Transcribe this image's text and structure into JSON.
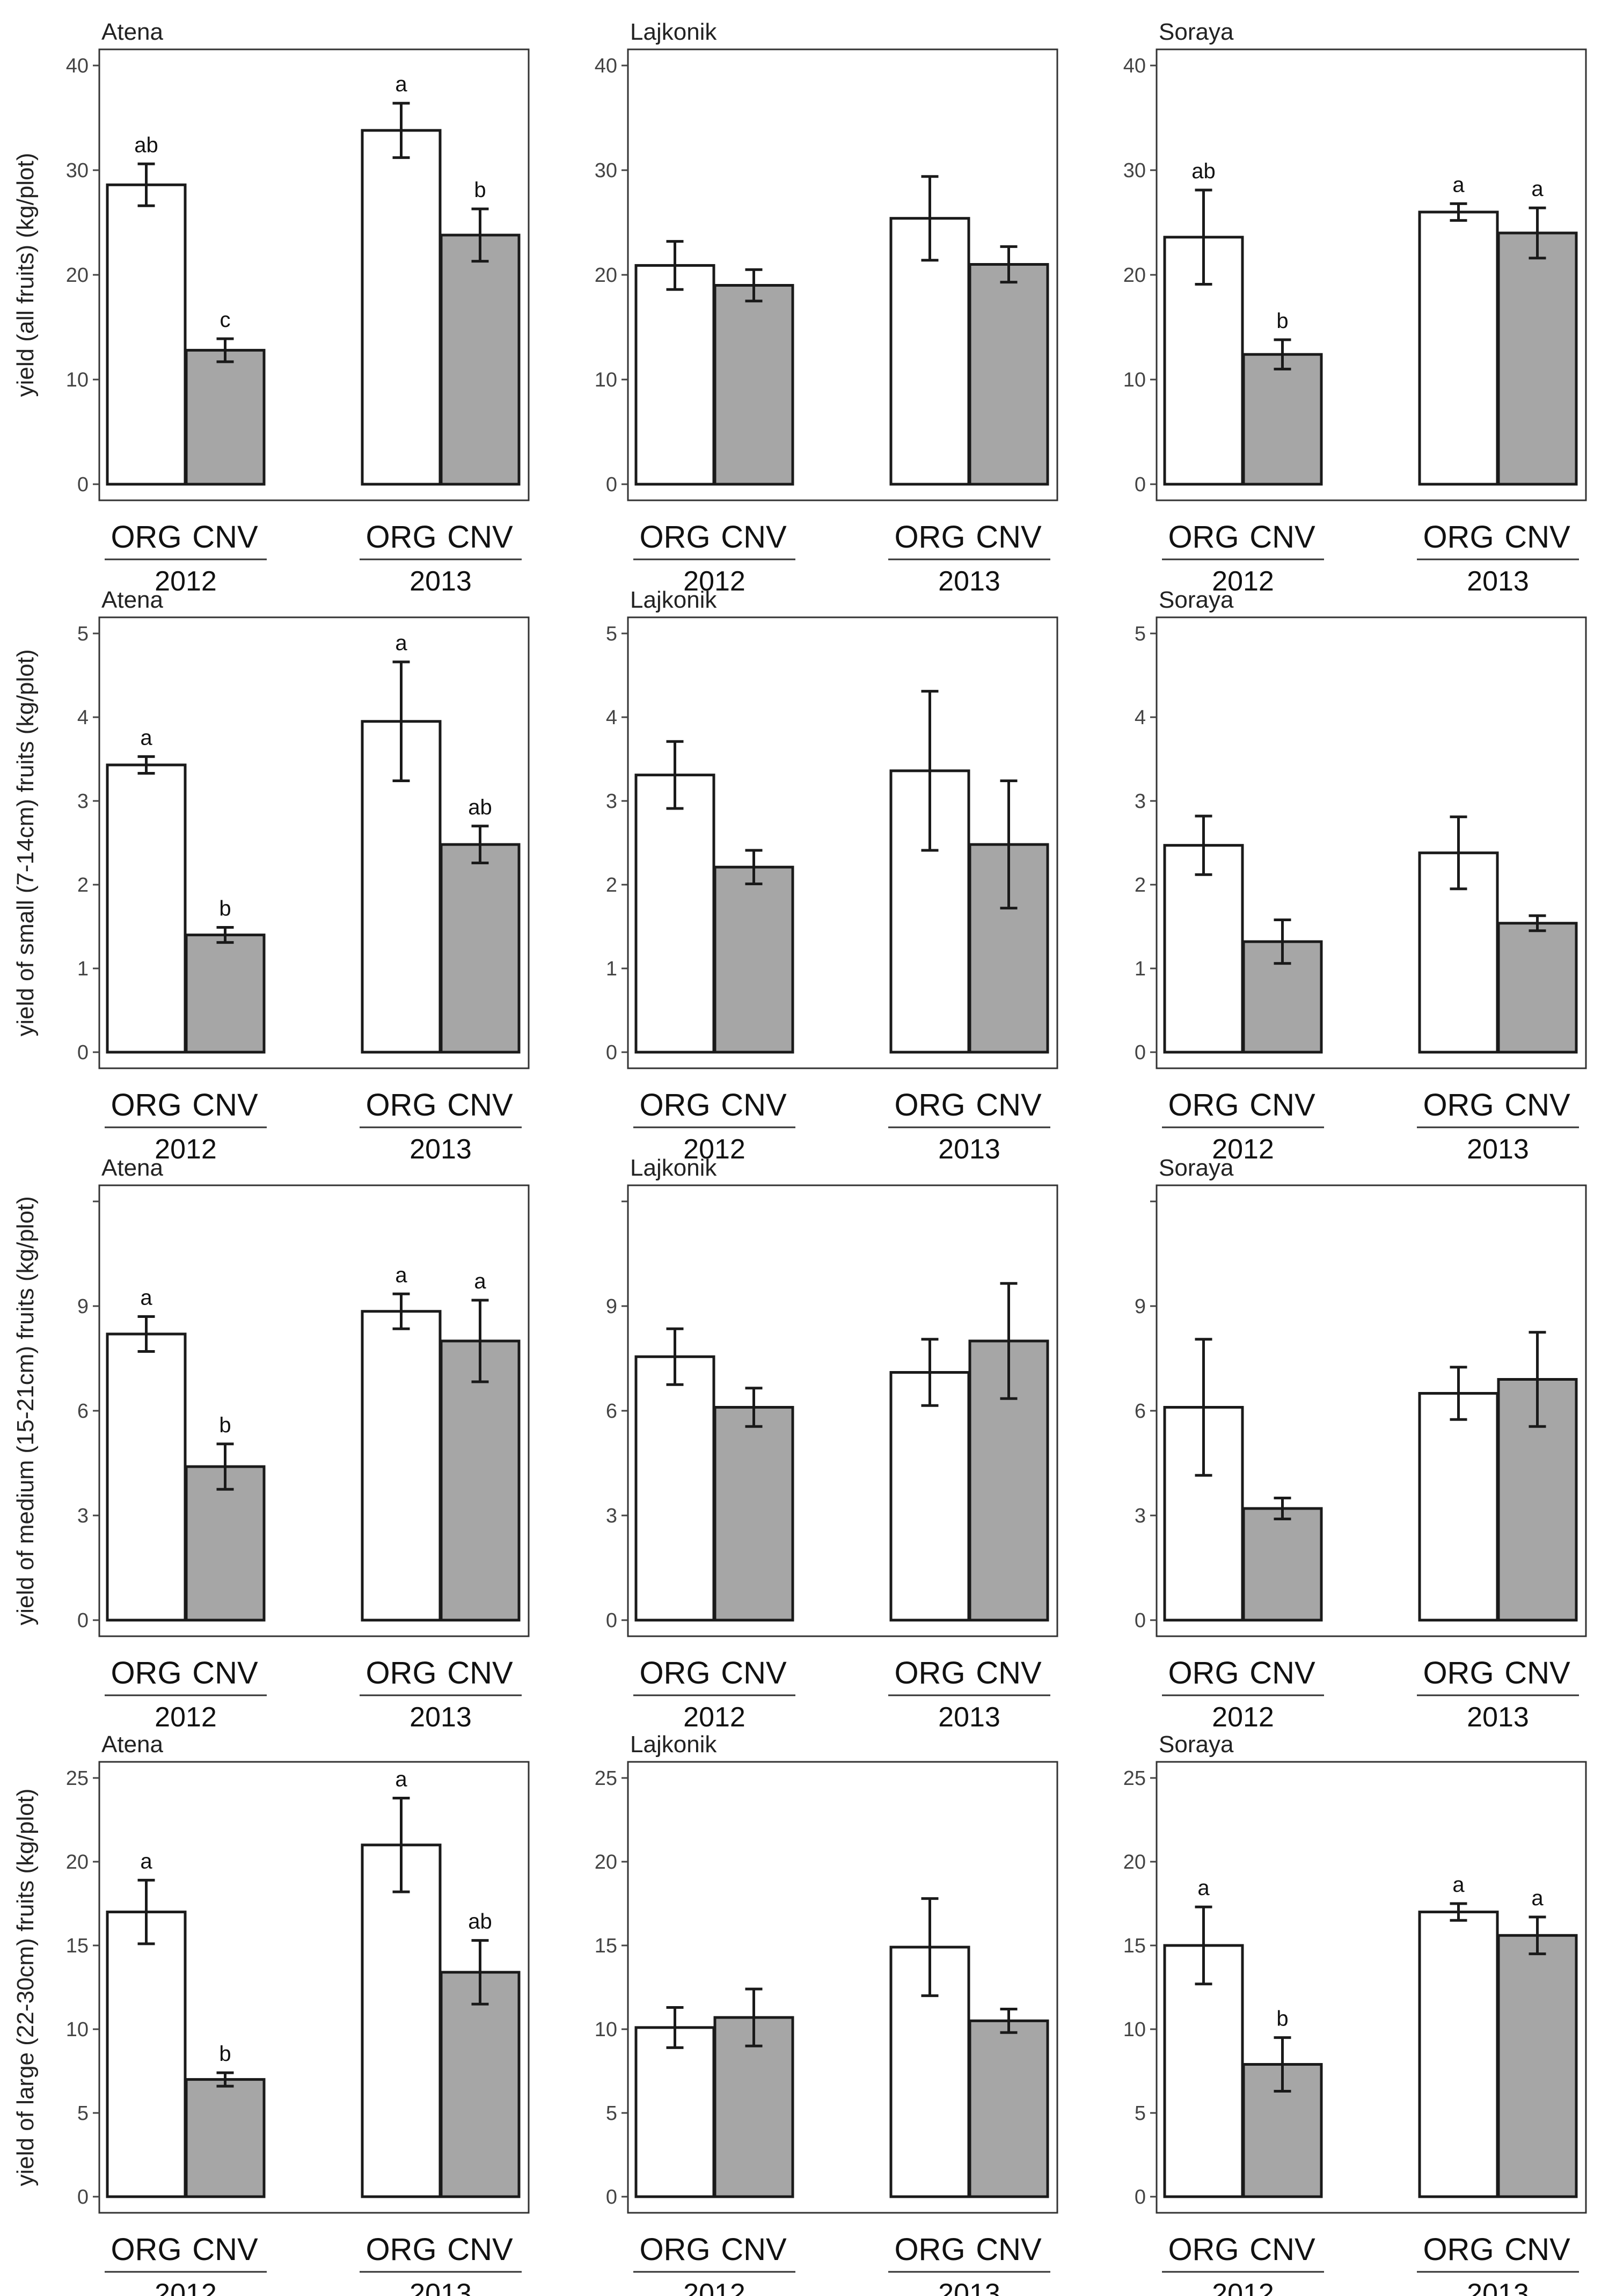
{
  "chart_data": {
    "type": "bar",
    "layout": "4 rows x 3 columns of faceted bar charts",
    "varieties": [
      "Atena",
      "Lajkonik",
      "Soraya"
    ],
    "years": [
      "2012",
      "2013"
    ],
    "treatments": [
      "ORG",
      "CNV"
    ],
    "treatment_colors": {
      "ORG": "#ffffff",
      "CNV": "#a6a6a6"
    },
    "rows": [
      {
        "ylabel": "yield (all fruits) (kg/plot)",
        "ylim": [
          0,
          40
        ],
        "yticks": [
          "0",
          "10",
          "20",
          "30",
          "40"
        ],
        "panels": [
          {
            "title": "Atena",
            "bars": [
              {
                "year": "2012",
                "treatment": "ORG",
                "value": 28.6,
                "err": 2.0,
                "label": "ab"
              },
              {
                "year": "2012",
                "treatment": "CNV",
                "value": 12.8,
                "err": 1.1,
                "label": "c"
              },
              {
                "year": "2013",
                "treatment": "ORG",
                "value": 33.8,
                "err": 2.6,
                "label": "a"
              },
              {
                "year": "2013",
                "treatment": "CNV",
                "value": 23.8,
                "err": 2.5,
                "label": "b"
              }
            ]
          },
          {
            "title": "Lajkonik",
            "bars": [
              {
                "year": "2012",
                "treatment": "ORG",
                "value": 20.9,
                "err": 2.3,
                "label": ""
              },
              {
                "year": "2012",
                "treatment": "CNV",
                "value": 19.0,
                "err": 1.5,
                "label": ""
              },
              {
                "year": "2013",
                "treatment": "ORG",
                "value": 25.4,
                "err": 4.0,
                "label": ""
              },
              {
                "year": "2013",
                "treatment": "CNV",
                "value": 21.0,
                "err": 1.7,
                "label": ""
              }
            ]
          },
          {
            "title": "Soraya",
            "bars": [
              {
                "year": "2012",
                "treatment": "ORG",
                "value": 23.6,
                "err": 4.5,
                "label": "ab"
              },
              {
                "year": "2012",
                "treatment": "CNV",
                "value": 12.4,
                "err": 1.4,
                "label": "b"
              },
              {
                "year": "2013",
                "treatment": "ORG",
                "value": 26.0,
                "err": 0.8,
                "label": "a"
              },
              {
                "year": "2013",
                "treatment": "CNV",
                "value": 24.0,
                "err": 2.4,
                "label": "a"
              }
            ]
          }
        ]
      },
      {
        "ylabel": "yield of small (7-14cm) fruits (kg/plot)",
        "ylim": [
          0,
          5
        ],
        "yticks": [
          "0",
          "1",
          "2",
          "3",
          "4",
          "5"
        ],
        "panels": [
          {
            "title": "Atena",
            "bars": [
              {
                "year": "2012",
                "treatment": "ORG",
                "value": 3.43,
                "err": 0.1,
                "label": "a"
              },
              {
                "year": "2012",
                "treatment": "CNV",
                "value": 1.4,
                "err": 0.09,
                "label": "b"
              },
              {
                "year": "2013",
                "treatment": "ORG",
                "value": 3.95,
                "err": 0.71,
                "label": "a"
              },
              {
                "year": "2013",
                "treatment": "CNV",
                "value": 2.48,
                "err": 0.22,
                "label": "ab"
              }
            ]
          },
          {
            "title": "Lajkonik",
            "bars": [
              {
                "year": "2012",
                "treatment": "ORG",
                "value": 3.31,
                "err": 0.4,
                "label": ""
              },
              {
                "year": "2012",
                "treatment": "CNV",
                "value": 2.21,
                "err": 0.2,
                "label": ""
              },
              {
                "year": "2013",
                "treatment": "ORG",
                "value": 3.36,
                "err": 0.95,
                "label": ""
              },
              {
                "year": "2013",
                "treatment": "CNV",
                "value": 2.48,
                "err": 0.76,
                "label": ""
              }
            ]
          },
          {
            "title": "Soraya",
            "bars": [
              {
                "year": "2012",
                "treatment": "ORG",
                "value": 2.47,
                "err": 0.35,
                "label": ""
              },
              {
                "year": "2012",
                "treatment": "CNV",
                "value": 1.32,
                "err": 0.26,
                "label": ""
              },
              {
                "year": "2013",
                "treatment": "ORG",
                "value": 2.38,
                "err": 0.43,
                "label": ""
              },
              {
                "year": "2013",
                "treatment": "CNV",
                "value": 1.54,
                "err": 0.09,
                "label": ""
              }
            ]
          }
        ]
      },
      {
        "ylabel": "yield of medium (15-21cm) fruits (kg/plot)",
        "ylim": [
          0,
          12
        ],
        "yticks": [
          "0",
          "3",
          "6",
          "9",
          ""
        ],
        "panels": [
          {
            "title": "Atena",
            "bars": [
              {
                "year": "2012",
                "treatment": "ORG",
                "value": 8.2,
                "err": 0.5,
                "label": "a"
              },
              {
                "year": "2012",
                "treatment": "CNV",
                "value": 4.4,
                "err": 0.65,
                "label": "b"
              },
              {
                "year": "2013",
                "treatment": "ORG",
                "value": 8.85,
                "err": 0.5,
                "label": "a"
              },
              {
                "year": "2013",
                "treatment": "CNV",
                "value": 8.0,
                "err": 1.17,
                "label": "a"
              }
            ]
          },
          {
            "title": "Lajkonik",
            "bars": [
              {
                "year": "2012",
                "treatment": "ORG",
                "value": 7.55,
                "err": 0.8,
                "label": ""
              },
              {
                "year": "2012",
                "treatment": "CNV",
                "value": 6.1,
                "err": 0.55,
                "label": ""
              },
              {
                "year": "2013",
                "treatment": "ORG",
                "value": 7.1,
                "err": 0.95,
                "label": ""
              },
              {
                "year": "2013",
                "treatment": "CNV",
                "value": 8.0,
                "err": 1.65,
                "label": ""
              }
            ]
          },
          {
            "title": "Soraya",
            "bars": [
              {
                "year": "2012",
                "treatment": "ORG",
                "value": 6.1,
                "err": 1.95,
                "label": ""
              },
              {
                "year": "2012",
                "treatment": "CNV",
                "value": 3.2,
                "err": 0.3,
                "label": ""
              },
              {
                "year": "2013",
                "treatment": "ORG",
                "value": 6.5,
                "err": 0.75,
                "label": ""
              },
              {
                "year": "2013",
                "treatment": "CNV",
                "value": 6.9,
                "err": 1.35,
                "label": ""
              }
            ]
          }
        ]
      },
      {
        "ylabel": "yield of large (22-30cm) fruits (kg/plot)",
        "ylim": [
          0,
          25
        ],
        "yticks": [
          "0",
          "5",
          "10",
          "15",
          "20",
          "25"
        ],
        "panels": [
          {
            "title": "Atena",
            "bars": [
              {
                "year": "2012",
                "treatment": "ORG",
                "value": 17.0,
                "err": 1.9,
                "label": "a"
              },
              {
                "year": "2012",
                "treatment": "CNV",
                "value": 7.0,
                "err": 0.4,
                "label": "b"
              },
              {
                "year": "2013",
                "treatment": "ORG",
                "value": 21.0,
                "err": 2.8,
                "label": "a"
              },
              {
                "year": "2013",
                "treatment": "CNV",
                "value": 13.4,
                "err": 1.9,
                "label": "ab"
              }
            ]
          },
          {
            "title": "Lajkonik",
            "bars": [
              {
                "year": "2012",
                "treatment": "ORG",
                "value": 10.1,
                "err": 1.2,
                "label": ""
              },
              {
                "year": "2012",
                "treatment": "CNV",
                "value": 10.7,
                "err": 1.7,
                "label": ""
              },
              {
                "year": "2013",
                "treatment": "ORG",
                "value": 14.9,
                "err": 2.9,
                "label": ""
              },
              {
                "year": "2013",
                "treatment": "CNV",
                "value": 10.5,
                "err": 0.7,
                "label": ""
              }
            ]
          },
          {
            "title": "Soraya",
            "bars": [
              {
                "year": "2012",
                "treatment": "ORG",
                "value": 15.0,
                "err": 2.3,
                "label": "a"
              },
              {
                "year": "2012",
                "treatment": "CNV",
                "value": 7.9,
                "err": 1.6,
                "label": "b"
              },
              {
                "year": "2013",
                "treatment": "ORG",
                "value": 17.0,
                "err": 0.5,
                "label": "a"
              },
              {
                "year": "2013",
                "treatment": "CNV",
                "value": 15.6,
                "err": 1.1,
                "label": "a"
              }
            ]
          }
        ]
      }
    ]
  }
}
